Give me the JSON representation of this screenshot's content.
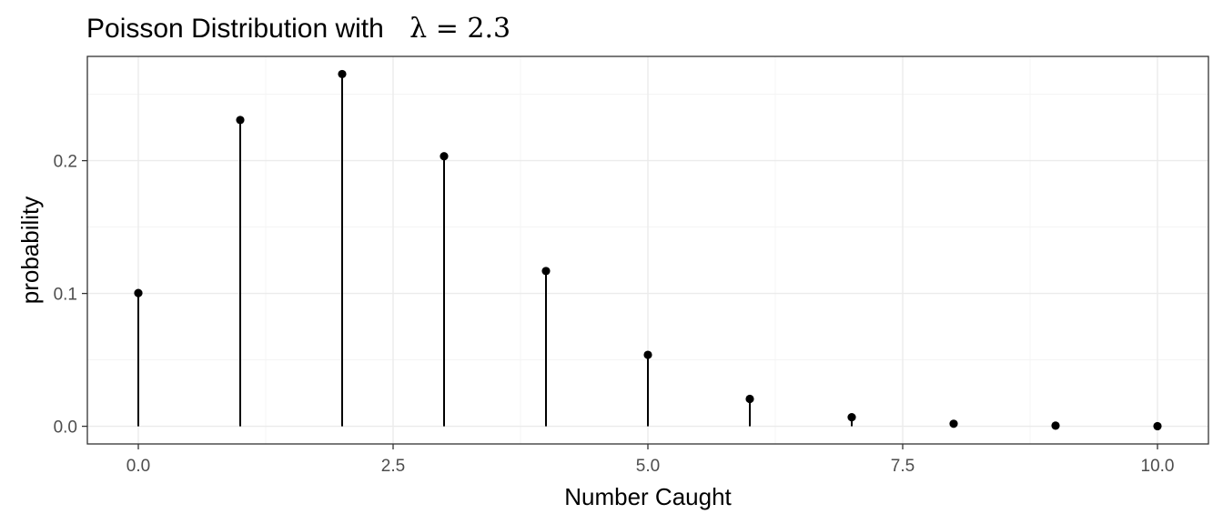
{
  "chart_data": {
    "type": "stem",
    "title_prefix": "Poisson Distribution with",
    "title_symbol": "λ = 2.3",
    "xlabel": "Number Caught",
    "ylabel": "probability",
    "x": [
      0,
      1,
      2,
      3,
      4,
      5,
      6,
      7,
      8,
      9,
      10
    ],
    "y": [
      0.1003,
      0.2306,
      0.2652,
      0.2033,
      0.1169,
      0.0538,
      0.0206,
      0.0068,
      0.0019,
      0.0005,
      0.0001
    ],
    "xlim": [
      -0.5,
      10.5
    ],
    "ylim": [
      -0.0133,
      0.2785
    ],
    "x_ticks": [
      "0.0",
      "2.5",
      "5.0",
      "7.5",
      "10.0"
    ],
    "x_tick_values": [
      0,
      2.5,
      5,
      7.5,
      10
    ],
    "y_ticks": [
      "0.0",
      "0.1",
      "0.2"
    ],
    "y_tick_values": [
      0,
      0.1,
      0.2
    ],
    "grid": true,
    "legend": "none"
  }
}
